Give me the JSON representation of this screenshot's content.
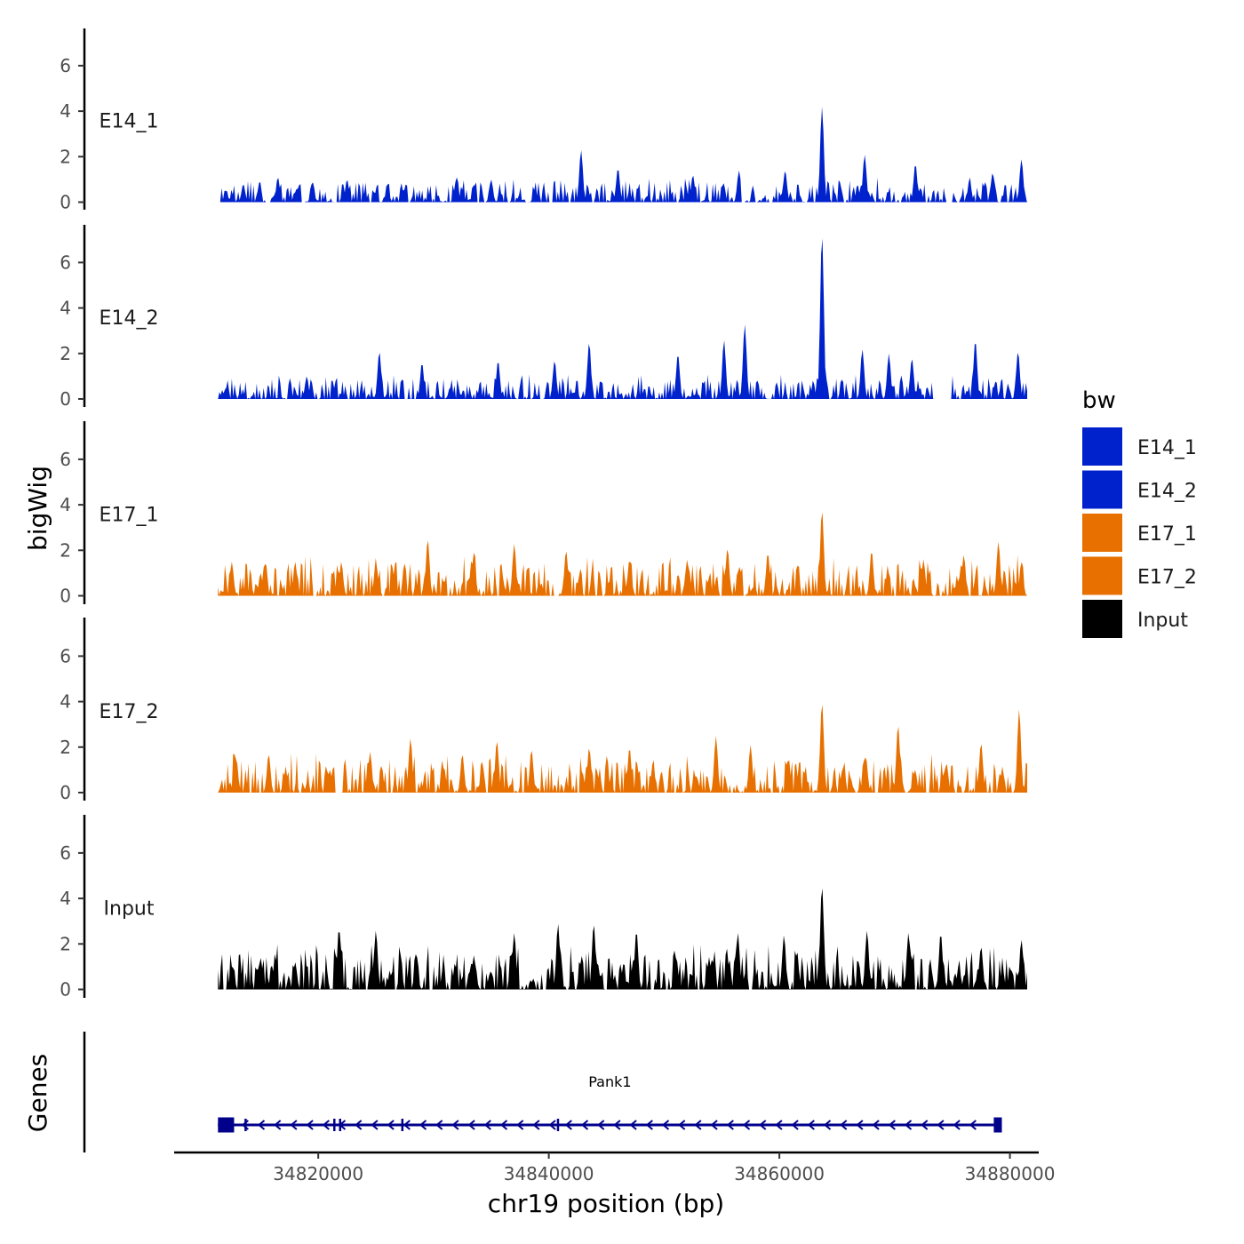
{
  "chart_data": {
    "type": "area",
    "title": "",
    "xlabel": "chr19 position (bp)",
    "ylabel": "bigWig",
    "genes_label": "Genes",
    "xlim": [
      34807500,
      34882500
    ],
    "x_ticks": [
      34820000,
      34840000,
      34860000,
      34880000
    ],
    "x_tick_labels": [
      "34820000",
      "34840000",
      "34860000",
      "34880000"
    ],
    "ylim": [
      0,
      7.8
    ],
    "y_ticks": [
      0,
      2,
      4,
      6
    ],
    "y_tick_labels": [
      "0",
      "2",
      "4",
      "6"
    ],
    "legend": {
      "title": "bw",
      "position": "right",
      "entries": [
        {
          "name": "E14_1",
          "color": "#0022cc"
        },
        {
          "name": "E14_2",
          "color": "#0022cc"
        },
        {
          "name": "E17_1",
          "color": "#e77000"
        },
        {
          "name": "E17_2",
          "color": "#e77000"
        },
        {
          "name": "Input",
          "color": "#000000"
        }
      ]
    },
    "series": [
      {
        "name": "E14_1",
        "color": "#0022cc",
        "x_start": 34811500,
        "x_end": 34881500,
        "peaks": [
          [
            34812000,
            0.5
          ],
          [
            34813500,
            0.8
          ],
          [
            34816500,
            1.1
          ],
          [
            34819500,
            0.9
          ],
          [
            34822500,
            1.0
          ],
          [
            34826000,
            0.7
          ],
          [
            34832000,
            1.1
          ],
          [
            34835000,
            1.0
          ],
          [
            34842800,
            2.3
          ],
          [
            34846000,
            1.5
          ],
          [
            34852500,
            1.2
          ],
          [
            34856500,
            1.4
          ],
          [
            34860500,
            1.4
          ],
          [
            34863700,
            4.2
          ],
          [
            34867400,
            2.1
          ],
          [
            34871800,
            1.7
          ],
          [
            34876500,
            1.0
          ],
          [
            34878500,
            1.3
          ],
          [
            34881000,
            1.9
          ]
        ],
        "gaps": [
          [
            34856700,
            34857000
          ],
          [
            34874600,
            34875000
          ]
        ],
        "base_level": 0.55
      },
      {
        "name": "E14_2",
        "color": "#0022cc",
        "x_start": 34811300,
        "x_end": 34881500,
        "peaks": [
          [
            34812000,
            0.5
          ],
          [
            34819000,
            1.0
          ],
          [
            34825300,
            2.1
          ],
          [
            34829000,
            1.6
          ],
          [
            34835600,
            1.7
          ],
          [
            34840500,
            1.7
          ],
          [
            34843500,
            2.5
          ],
          [
            34851200,
            2.0
          ],
          [
            34855200,
            2.6
          ],
          [
            34857000,
            3.3
          ],
          [
            34863700,
            7.3
          ],
          [
            34867200,
            2.2
          ],
          [
            34869500,
            2.0
          ],
          [
            34871500,
            1.8
          ],
          [
            34877000,
            2.6
          ],
          [
            34880700,
            2.1
          ]
        ],
        "gaps": [
          [
            34873500,
            34875000
          ]
        ],
        "base_level": 0.55
      },
      {
        "name": "E17_1",
        "color": "#e77000",
        "x_start": 34811300,
        "x_end": 34881500,
        "peaks": [
          [
            34812500,
            1.5
          ],
          [
            34815000,
            1.0
          ],
          [
            34818000,
            1.5
          ],
          [
            34822000,
            1.5
          ],
          [
            34825000,
            1.5
          ],
          [
            34829500,
            2.5
          ],
          [
            34833500,
            1.9
          ],
          [
            34837000,
            2.3
          ],
          [
            34841500,
            2.0
          ],
          [
            34847000,
            1.6
          ],
          [
            34852000,
            1.6
          ],
          [
            34855500,
            2.1
          ],
          [
            34859000,
            1.9
          ],
          [
            34863700,
            3.8
          ],
          [
            34868000,
            2.0
          ],
          [
            34872500,
            1.6
          ],
          [
            34876000,
            1.8
          ],
          [
            34879000,
            2.4
          ],
          [
            34881000,
            1.5
          ]
        ],
        "gaps": [],
        "base_level": 0.9
      },
      {
        "name": "E17_2",
        "color": "#e77000",
        "x_start": 34811300,
        "x_end": 34881500,
        "peaks": [
          [
            34812800,
            1.6
          ],
          [
            34815700,
            1.7
          ],
          [
            34821000,
            1.0
          ],
          [
            34824500,
            1.8
          ],
          [
            34828000,
            2.4
          ],
          [
            34832500,
            1.7
          ],
          [
            34835500,
            2.3
          ],
          [
            34838500,
            1.9
          ],
          [
            34843500,
            2.0
          ],
          [
            34847000,
            2.0
          ],
          [
            34854500,
            2.5
          ],
          [
            34857500,
            2.1
          ],
          [
            34860800,
            1.5
          ],
          [
            34863700,
            4.0
          ],
          [
            34867500,
            1.6
          ],
          [
            34870300,
            3.0
          ],
          [
            34874500,
            1.3
          ],
          [
            34877500,
            2.2
          ],
          [
            34880800,
            3.7
          ]
        ],
        "gaps": [
          [
            34821500,
            34822000
          ]
        ],
        "base_level": 0.9
      },
      {
        "name": "Input",
        "color": "#000000",
        "x_start": 34811300,
        "x_end": 34881500,
        "peaks": [
          [
            34812500,
            1.0
          ],
          [
            34815000,
            1.4
          ],
          [
            34818000,
            1.2
          ],
          [
            34821800,
            2.7
          ],
          [
            34825000,
            2.6
          ],
          [
            34828500,
            1.6
          ],
          [
            34833500,
            1.5
          ],
          [
            34837000,
            2.5
          ],
          [
            34840800,
            2.9
          ],
          [
            34843900,
            2.9
          ],
          [
            34847600,
            2.6
          ],
          [
            34851000,
            1.4
          ],
          [
            34856400,
            2.5
          ],
          [
            34860400,
            2.4
          ],
          [
            34863700,
            4.6
          ],
          [
            34867600,
            2.6
          ],
          [
            34871200,
            2.5
          ],
          [
            34874000,
            2.5
          ],
          [
            34877500,
            1.9
          ],
          [
            34881000,
            2.2
          ]
        ],
        "gaps": [],
        "base_level": 1.0
      }
    ],
    "gene": {
      "name": "Pank1",
      "strand": "-",
      "start": 34811300,
      "end": 34879300,
      "exons": [
        [
          34811300,
          34812700
        ],
        [
          34813600,
          34813700
        ],
        [
          34821300,
          34821400
        ],
        [
          34821800,
          34821950
        ],
        [
          34827200,
          34827350
        ],
        [
          34840700,
          34840850
        ],
        [
          34878600,
          34879300
        ]
      ],
      "color": "#00008b"
    }
  }
}
